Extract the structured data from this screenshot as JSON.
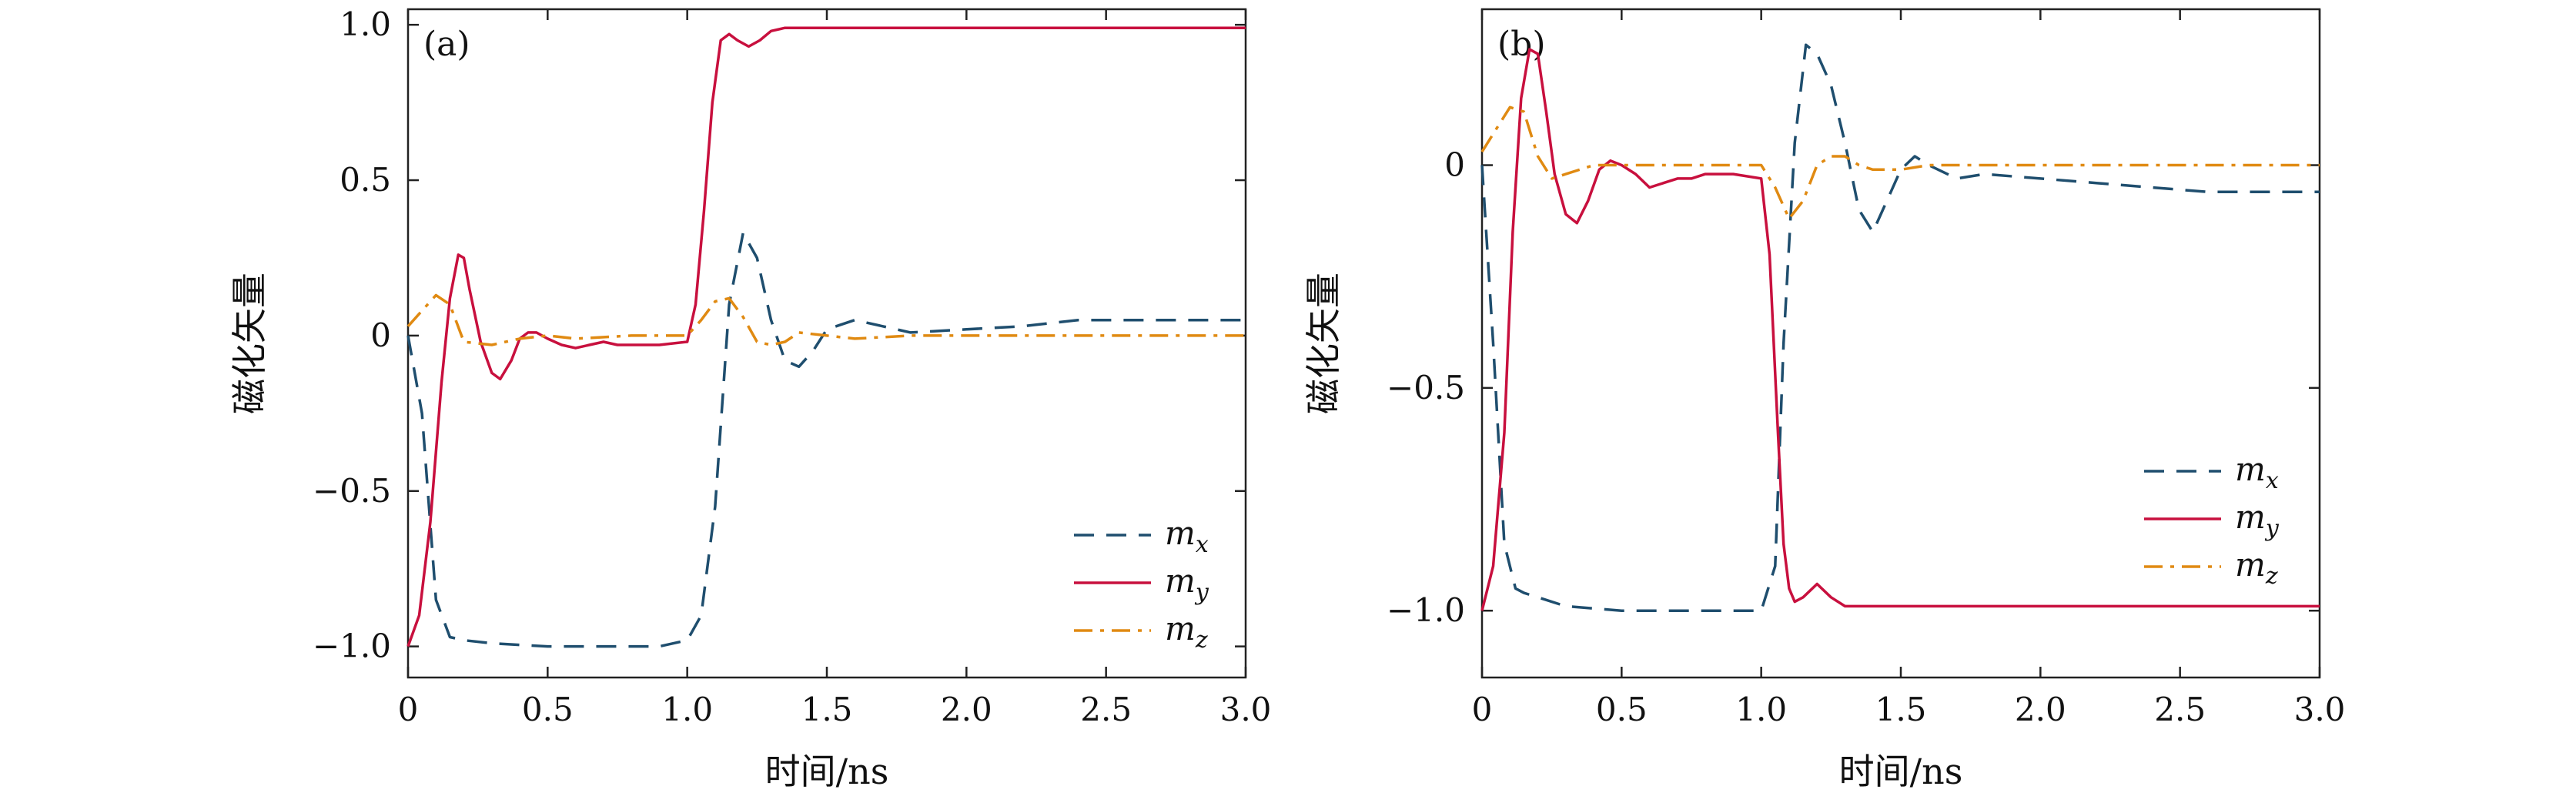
{
  "figure": {
    "colors": {
      "mx": "#1f4e6e",
      "my": "#c8103e",
      "mz": "#e08a12",
      "axis": "#222222"
    }
  },
  "chart_data": [
    {
      "type": "line",
      "panel_label": "(a)",
      "xlabel": "时间/ns",
      "ylabel": "磁化矢量",
      "xlim": [
        0,
        3.0
      ],
      "ylim": [
        -1.1,
        1.05
      ],
      "xticks": [
        0,
        0.5,
        1.0,
        1.5,
        2.0,
        2.5,
        3.0
      ],
      "xtick_labels": [
        "0",
        "0.5",
        "1.0",
        "1.5",
        "2.0",
        "2.5",
        "3.0"
      ],
      "yticks": [
        -1.0,
        -0.5,
        0,
        0.5,
        1.0
      ],
      "ytick_labels": [
        "−1.0",
        "−0.5",
        "0",
        "0.5",
        "1.0"
      ],
      "grid": false,
      "legend_position": "bottom-right",
      "series": [
        {
          "name": "m_x",
          "legend_main": "m",
          "legend_sub": "x",
          "style": "dashed",
          "color_key": "mx",
          "x": [
            0,
            0.05,
            0.1,
            0.15,
            0.2,
            0.3,
            0.5,
            0.7,
            0.9,
            1.0,
            1.05,
            1.1,
            1.15,
            1.2,
            1.25,
            1.3,
            1.35,
            1.4,
            1.45,
            1.5,
            1.6,
            1.8,
            2.0,
            2.2,
            2.4,
            2.6,
            2.8,
            3.0
          ],
          "y": [
            0,
            -0.25,
            -0.85,
            -0.97,
            -0.98,
            -0.99,
            -1.0,
            -1.0,
            -1.0,
            -0.98,
            -0.9,
            -0.55,
            0.1,
            0.33,
            0.25,
            0.05,
            -0.08,
            -0.1,
            -0.05,
            0.02,
            0.05,
            0.01,
            0.02,
            0.03,
            0.05,
            0.05,
            0.05,
            0.05
          ]
        },
        {
          "name": "m_y",
          "legend_main": "m",
          "legend_sub": "y",
          "style": "solid",
          "color_key": "my",
          "x": [
            0,
            0.04,
            0.08,
            0.12,
            0.15,
            0.18,
            0.2,
            0.22,
            0.26,
            0.3,
            0.33,
            0.37,
            0.4,
            0.43,
            0.46,
            0.5,
            0.55,
            0.6,
            0.65,
            0.7,
            0.75,
            0.8,
            0.9,
            1.0,
            1.03,
            1.06,
            1.09,
            1.12,
            1.15,
            1.18,
            1.22,
            1.26,
            1.3,
            1.35,
            1.4,
            1.5,
            1.6,
            2.0,
            2.5,
            3.0
          ],
          "y": [
            -1.0,
            -0.9,
            -0.6,
            -0.15,
            0.12,
            0.26,
            0.25,
            0.15,
            -0.02,
            -0.12,
            -0.14,
            -0.08,
            -0.01,
            0.01,
            0.01,
            -0.01,
            -0.03,
            -0.04,
            -0.03,
            -0.02,
            -0.03,
            -0.03,
            -0.03,
            -0.02,
            0.1,
            0.4,
            0.75,
            0.95,
            0.97,
            0.95,
            0.93,
            0.95,
            0.98,
            0.99,
            0.99,
            0.99,
            0.99,
            0.99,
            0.99,
            0.99
          ]
        },
        {
          "name": "m_z",
          "legend_main": "m",
          "legend_sub": "z",
          "style": "dashdot",
          "color_key": "mz",
          "x": [
            0,
            0.05,
            0.1,
            0.15,
            0.2,
            0.3,
            0.4,
            0.5,
            0.6,
            0.8,
            1.0,
            1.05,
            1.1,
            1.15,
            1.2,
            1.25,
            1.3,
            1.35,
            1.4,
            1.5,
            1.6,
            1.8,
            2.0,
            2.5,
            3.0
          ],
          "y": [
            0.03,
            0.08,
            0.13,
            0.1,
            -0.02,
            -0.03,
            -0.01,
            0.0,
            -0.01,
            0.0,
            0.0,
            0.05,
            0.11,
            0.12,
            0.06,
            -0.02,
            -0.03,
            -0.02,
            0.01,
            0.0,
            -0.01,
            0.0,
            0.0,
            0.0,
            0.0
          ]
        }
      ]
    },
    {
      "type": "line",
      "panel_label": "(b)",
      "xlabel": "时间/ns",
      "ylabel": "磁化矢量",
      "xlim": [
        0,
        3.0
      ],
      "ylim": [
        -1.15,
        0.35
      ],
      "xticks": [
        0,
        0.5,
        1.0,
        1.5,
        2.0,
        2.5,
        3.0
      ],
      "xtick_labels": [
        "0",
        "0.5",
        "1.0",
        "1.5",
        "2.0",
        "2.5",
        "3.0"
      ],
      "yticks": [
        -1.0,
        -0.5,
        0
      ],
      "ytick_labels": [
        "−1.0",
        "−0.5",
        "0"
      ],
      "grid": false,
      "legend_position": "center-right",
      "series": [
        {
          "name": "m_x",
          "legend_main": "m",
          "legend_sub": "x",
          "style": "dashed",
          "color_key": "mx",
          "x": [
            0,
            0.04,
            0.08,
            0.12,
            0.15,
            0.2,
            0.3,
            0.5,
            0.7,
            0.9,
            1.0,
            1.05,
            1.08,
            1.12,
            1.16,
            1.2,
            1.25,
            1.3,
            1.35,
            1.4,
            1.45,
            1.5,
            1.55,
            1.6,
            1.7,
            1.8,
            2.0,
            2.2,
            2.4,
            2.6,
            2.8,
            3.0
          ],
          "y": [
            0,
            -0.4,
            -0.85,
            -0.95,
            -0.96,
            -0.97,
            -0.99,
            -1.0,
            -1.0,
            -1.0,
            -1.0,
            -0.9,
            -0.4,
            0.05,
            0.27,
            0.25,
            0.18,
            0.05,
            -0.1,
            -0.15,
            -0.08,
            -0.01,
            0.02,
            0.0,
            -0.03,
            -0.02,
            -0.03,
            -0.04,
            -0.05,
            -0.06,
            -0.06,
            -0.06
          ]
        },
        {
          "name": "m_y",
          "legend_main": "m",
          "legend_sub": "y",
          "style": "solid",
          "color_key": "my",
          "x": [
            0,
            0.04,
            0.08,
            0.11,
            0.14,
            0.17,
            0.2,
            0.23,
            0.26,
            0.3,
            0.34,
            0.38,
            0.42,
            0.46,
            0.5,
            0.55,
            0.6,
            0.65,
            0.7,
            0.75,
            0.8,
            0.9,
            1.0,
            1.03,
            1.06,
            1.08,
            1.1,
            1.12,
            1.15,
            1.2,
            1.25,
            1.3,
            1.35,
            1.4,
            1.5,
            1.6,
            2.0,
            2.5,
            3.0
          ],
          "y": [
            -1.0,
            -0.9,
            -0.6,
            -0.15,
            0.15,
            0.26,
            0.25,
            0.12,
            -0.02,
            -0.11,
            -0.13,
            -0.08,
            -0.01,
            0.01,
            0.0,
            -0.02,
            -0.05,
            -0.04,
            -0.03,
            -0.03,
            -0.02,
            -0.02,
            -0.03,
            -0.2,
            -0.6,
            -0.85,
            -0.95,
            -0.98,
            -0.97,
            -0.94,
            -0.97,
            -0.99,
            -0.99,
            -0.99,
            -0.99,
            -0.99,
            -0.99,
            -0.99,
            -0.99
          ]
        },
        {
          "name": "m_z",
          "legend_main": "m",
          "legend_sub": "z",
          "style": "dashdot",
          "color_key": "mz",
          "x": [
            0,
            0.05,
            0.1,
            0.15,
            0.2,
            0.25,
            0.3,
            0.4,
            0.5,
            0.6,
            0.8,
            1.0,
            1.05,
            1.1,
            1.15,
            1.2,
            1.25,
            1.3,
            1.35,
            1.4,
            1.5,
            1.6,
            1.8,
            2.0,
            2.5,
            3.0
          ],
          "y": [
            0.03,
            0.08,
            0.13,
            0.12,
            0.02,
            -0.03,
            -0.02,
            0.0,
            0.0,
            0.0,
            0.0,
            0.0,
            -0.05,
            -0.12,
            -0.08,
            0.0,
            0.02,
            0.02,
            0.0,
            -0.01,
            -0.01,
            0.0,
            0.0,
            0.0,
            0.0,
            0.0
          ]
        }
      ]
    }
  ]
}
